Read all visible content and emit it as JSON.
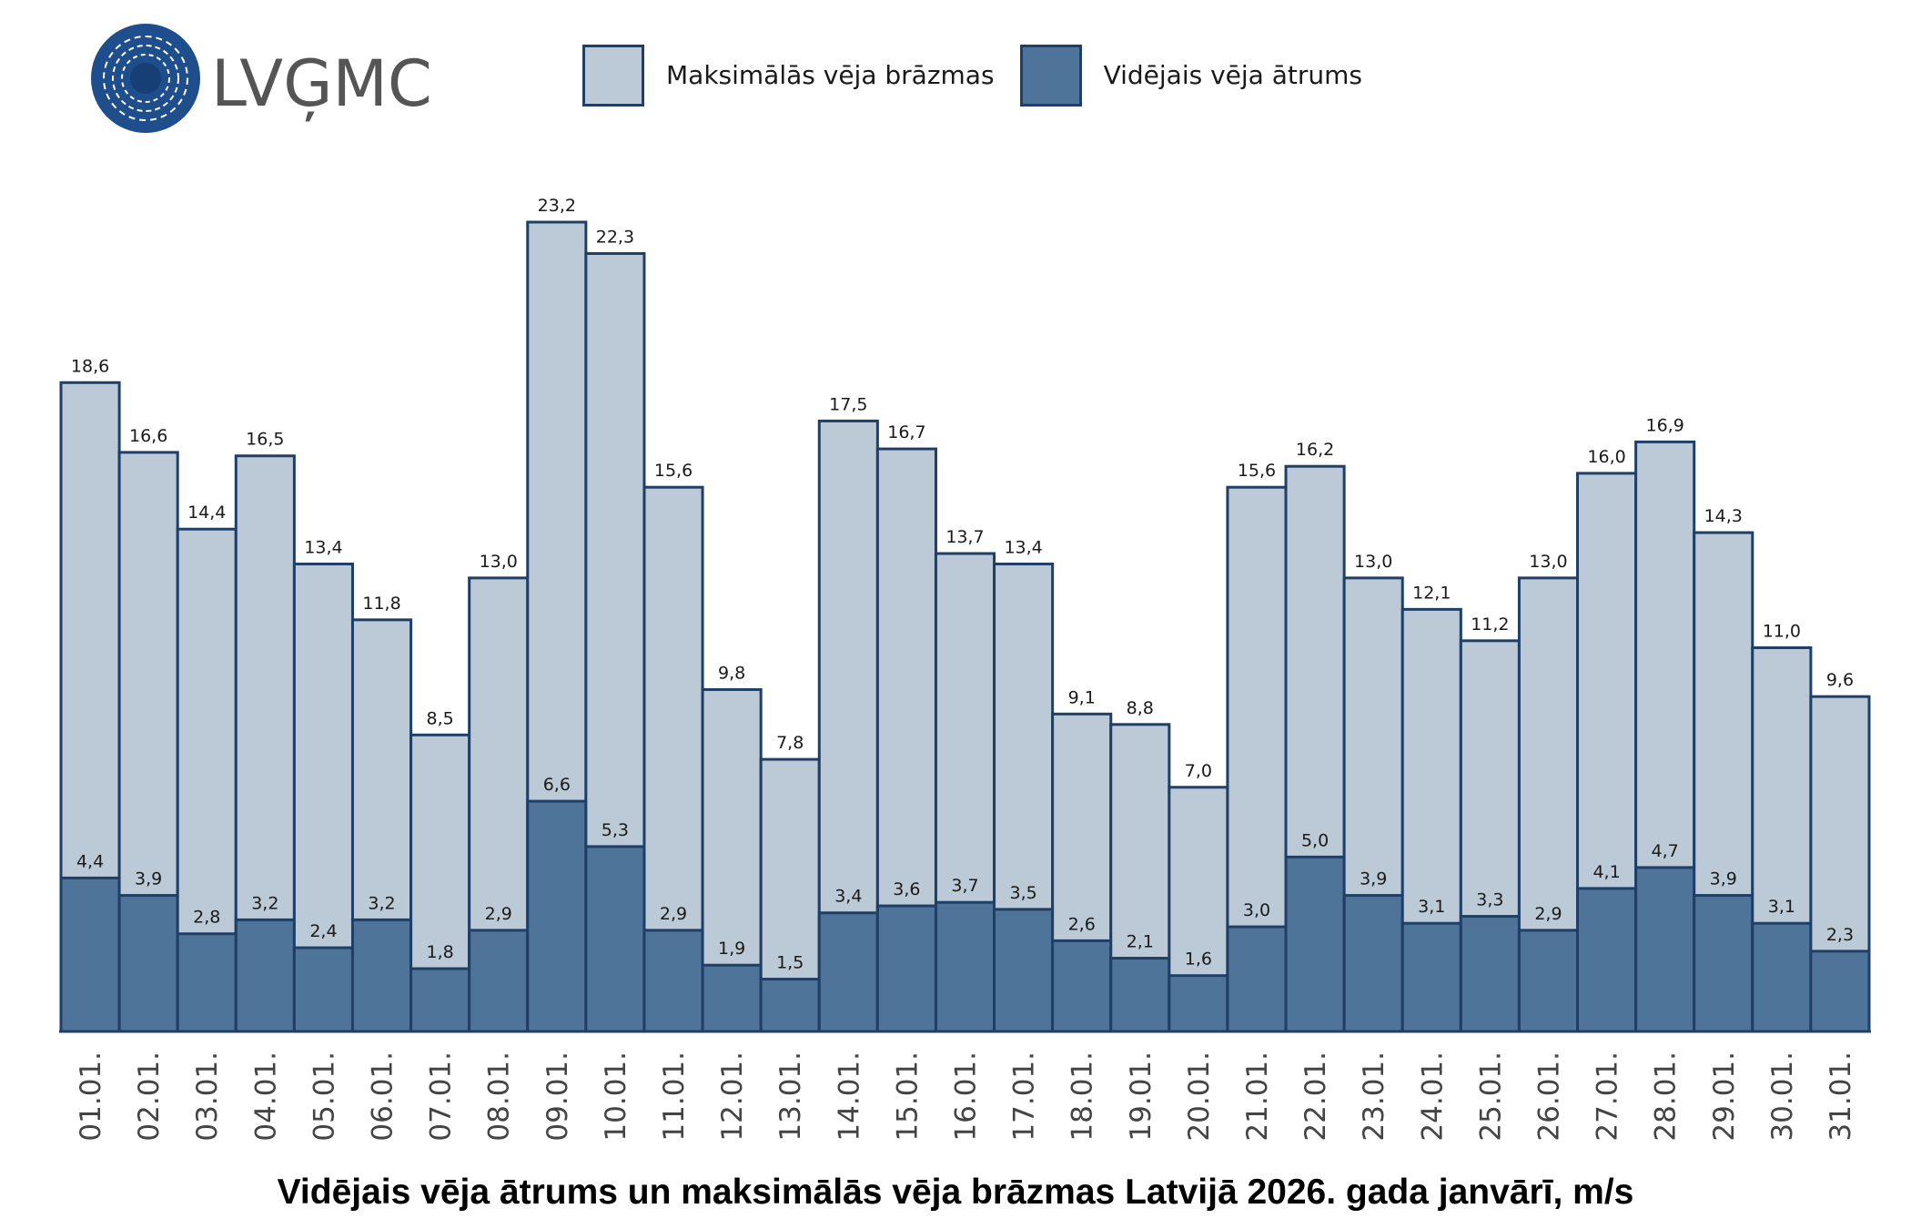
{
  "logo": {
    "text": "LVĢMC",
    "icon": "lvgmc-globe-logo",
    "color": "#1f4e8c",
    "text_color": "#555555"
  },
  "legend": [
    {
      "label": "Maksimālās vēja brāzmas",
      "color": "#bccad8"
    },
    {
      "label": "Vidējais vēja ātrums",
      "color": "#4f7499"
    }
  ],
  "colors": {
    "gust": "#bccad8",
    "mean": "#4f7499",
    "outline": "#1f3f66"
  },
  "chart_data": {
    "type": "bar",
    "title": "Vidējais vēja ātrums un maksimālās vēja brāzmas Latvijā 2026. gada janvārī, m/s",
    "categories": [
      "01.01.",
      "02.01.",
      "03.01.",
      "04.01.",
      "05.01.",
      "06.01.",
      "07.01.",
      "08.01.",
      "09.01.",
      "10.01.",
      "11.01.",
      "12.01.",
      "13.01.",
      "14.01.",
      "15.01.",
      "16.01.",
      "17.01.",
      "18.01.",
      "19.01.",
      "20.01.",
      "21.01.",
      "22.01.",
      "23.01.",
      "24.01.",
      "25.01.",
      "26.01.",
      "27.01.",
      "28.01.",
      "29.01.",
      "30.01.",
      "31.01."
    ],
    "series": [
      {
        "name": "Maksimālās vēja brāzmas",
        "values": [
          18.6,
          16.6,
          14.4,
          16.5,
          13.4,
          11.8,
          8.5,
          13.0,
          23.2,
          22.3,
          15.6,
          9.8,
          7.8,
          17.5,
          16.7,
          13.7,
          13.4,
          9.1,
          8.8,
          7.0,
          15.6,
          16.2,
          13.0,
          12.1,
          11.2,
          13.0,
          16.0,
          16.9,
          14.3,
          11.0,
          9.6
        ],
        "labels": [
          "18,6",
          "16,6",
          "14,4",
          "16,5",
          "13,4",
          "11,8",
          "8,5",
          "13,0",
          "23,2",
          "22,3",
          "15,6",
          "9,8",
          "7,8",
          "17,5",
          "16,7",
          "13,7",
          "13,4",
          "9,1",
          "8,8",
          "7,0",
          "15,6",
          "16,2",
          "13,0",
          "12,1",
          "11,2",
          "13,0",
          "16,0",
          "16,9",
          "14,3",
          "11,0",
          "9,6"
        ]
      },
      {
        "name": "Vidējais vēja ātrums",
        "values": [
          4.4,
          3.9,
          2.8,
          3.2,
          2.4,
          3.2,
          1.8,
          2.9,
          6.6,
          5.3,
          2.9,
          1.9,
          1.5,
          3.4,
          3.6,
          3.7,
          3.5,
          2.6,
          2.1,
          1.6,
          3.0,
          5.0,
          3.9,
          3.1,
          3.3,
          2.9,
          4.1,
          4.7,
          3.9,
          3.1,
          2.3
        ],
        "labels": [
          "4,4",
          "3,9",
          "2,8",
          "3,2",
          "2,4",
          "3,2",
          "1,8",
          "2,9",
          "6,6",
          "5,3",
          "2,9",
          "1,9",
          "1,5",
          "3,4",
          "3,6",
          "3,7",
          "3,5",
          "2,6",
          "2,1",
          "1,6",
          "3,0",
          "5,0",
          "3,9",
          "3,1",
          "3,3",
          "2,9",
          "4,1",
          "4,7",
          "3,9",
          "3,1",
          "2,3"
        ]
      }
    ],
    "ylim": [
      0,
      23.2
    ],
    "grid": false,
    "legend_position": "top-center",
    "overlapping_bars": true
  }
}
